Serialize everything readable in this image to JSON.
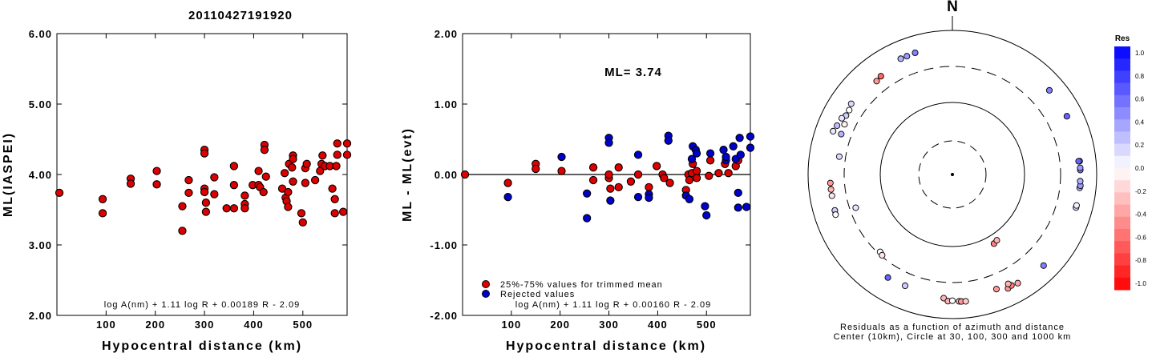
{
  "title": "20110427191920",
  "colors": {
    "red": "#dd0000",
    "blue": "#0000cc",
    "line": "#000000"
  },
  "chart_data": [
    {
      "type": "scatter",
      "ylabel": "ML(IASPEI)",
      "xlabel": "Hypocentral distance (km)",
      "xlim": [
        0,
        590
      ],
      "ylim": [
        2.0,
        6.0
      ],
      "xticks": [
        100,
        200,
        300,
        400,
        500
      ],
      "yticks": [
        2.0,
        3.0,
        4.0,
        5.0,
        6.0
      ],
      "ytick_labels": [
        "2.00",
        "3.00",
        "4.00",
        "5.00",
        "6.00"
      ],
      "formula": "log A(nm) + 1.11 log R + 0.00189 R - 2.09",
      "series": [
        {
          "color": "red",
          "points": [
            [
              5,
              3.74
            ],
            [
              93,
              3.65
            ],
            [
              93,
              3.45
            ],
            [
              150,
              3.94
            ],
            [
              150,
              3.87
            ],
            [
              203,
              4.05
            ],
            [
              203,
              3.86
            ],
            [
              255,
              3.55
            ],
            [
              255,
              3.2
            ],
            [
              268,
              3.92
            ],
            [
              268,
              3.74
            ],
            [
              300,
              4.35
            ],
            [
              300,
              4.3
            ],
            [
              300,
              3.8
            ],
            [
              300,
              3.75
            ],
            [
              303,
              3.6
            ],
            [
              303,
              3.47
            ],
            [
              320,
              3.96
            ],
            [
              320,
              3.72
            ],
            [
              345,
              3.52
            ],
            [
              360,
              4.12
            ],
            [
              360,
              3.85
            ],
            [
              360,
              3.52
            ],
            [
              382,
              3.7
            ],
            [
              382,
              3.58
            ],
            [
              382,
              3.52
            ],
            [
              398,
              3.85
            ],
            [
              410,
              4.05
            ],
            [
              410,
              3.85
            ],
            [
              413,
              3.82
            ],
            [
              420,
              3.75
            ],
            [
              422,
              4.42
            ],
            [
              422,
              4.35
            ],
            [
              425,
              3.97
            ],
            [
              458,
              3.8
            ],
            [
              463,
              4.02
            ],
            [
              465,
              3.67
            ],
            [
              467,
              3.62
            ],
            [
              470,
              3.54
            ],
            [
              470,
              3.75
            ],
            [
              472,
              4.15
            ],
            [
              478,
              4.1
            ],
            [
              480,
              3.9
            ],
            [
              480,
              4.27
            ],
            [
              480,
              4.22
            ],
            [
              497,
              3.45
            ],
            [
              500,
              3.32
            ],
            [
              505,
              3.88
            ],
            [
              505,
              4.09
            ],
            [
              508,
              4.15
            ],
            [
              525,
              3.92
            ],
            [
              535,
              4.05
            ],
            [
              538,
              4.15
            ],
            [
              540,
              4.27
            ],
            [
              545,
              4.12
            ],
            [
              555,
              4.12
            ],
            [
              560,
              3.8
            ],
            [
              565,
              3.65
            ],
            [
              565,
              3.45
            ],
            [
              568,
              4.12
            ],
            [
              570,
              4.44
            ],
            [
              570,
              4.28
            ],
            [
              582,
              3.47
            ],
            [
              590,
              4.44
            ],
            [
              590,
              4.28
            ]
          ]
        }
      ]
    },
    {
      "type": "scatter",
      "ylabel": "ML - ML(evt)",
      "xlabel": "Hypocentral distance (km)",
      "xlim": [
        0,
        590
      ],
      "ylim": [
        -2.0,
        2.0
      ],
      "xticks": [
        100,
        200,
        300,
        400,
        500
      ],
      "yticks": [
        -2.0,
        -1.0,
        0.0,
        1.0,
        2.0
      ],
      "ytick_labels": [
        "-2.00",
        "-1.00",
        "0.00",
        "1.00",
        "2.00"
      ],
      "annotation": "ML= 3.74",
      "legend": [
        "25%-75% values for trimmed mean",
        "Rejected values"
      ],
      "formula": "log A(nm) + 1.11 log R + 0.00160 R - 2.09",
      "series": [
        {
          "name": "25%-75% values for trimmed mean",
          "color": "red",
          "points": [
            [
              5,
              0.0
            ],
            [
              93,
              -0.12
            ],
            [
              150,
              0.15
            ],
            [
              150,
              0.08
            ],
            [
              203,
              0.05
            ],
            [
              268,
              0.1
            ],
            [
              268,
              -0.08
            ],
            [
              300,
              -0.05
            ],
            [
              300,
              0.0
            ],
            [
              303,
              -0.2
            ],
            [
              320,
              -0.18
            ],
            [
              320,
              0.1
            ],
            [
              345,
              -0.1
            ],
            [
              360,
              0.0
            ],
            [
              382,
              -0.18
            ],
            [
              398,
              0.12
            ],
            [
              410,
              0.0
            ],
            [
              413,
              -0.05
            ],
            [
              425,
              -0.12
            ],
            [
              458,
              -0.22
            ],
            [
              463,
              0.0
            ],
            [
              465,
              -0.08
            ],
            [
              470,
              0.02
            ],
            [
              472,
              0.15
            ],
            [
              480,
              0.05
            ],
            [
              480,
              -0.05
            ],
            [
              505,
              -0.02
            ],
            [
              508,
              0.2
            ],
            [
              525,
              0.02
            ],
            [
              538,
              0.15
            ],
            [
              545,
              0.02
            ],
            [
              560,
              0.12
            ],
            [
              565,
              0.2
            ]
          ]
        },
        {
          "name": "Rejected values",
          "color": "blue",
          "points": [
            [
              93,
              -0.32
            ],
            [
              203,
              0.25
            ],
            [
              255,
              -0.27
            ],
            [
              255,
              -0.62
            ],
            [
              300,
              0.52
            ],
            [
              300,
              0.45
            ],
            [
              303,
              -0.37
            ],
            [
              360,
              0.28
            ],
            [
              360,
              -0.32
            ],
            [
              382,
              -0.28
            ],
            [
              382,
              -0.33
            ],
            [
              422,
              0.55
            ],
            [
              422,
              0.48
            ],
            [
              458,
              -0.3
            ],
            [
              465,
              -0.35
            ],
            [
              470,
              0.22
            ],
            [
              472,
              0.4
            ],
            [
              478,
              0.35
            ],
            [
              480,
              0.3
            ],
            [
              497,
              -0.45
            ],
            [
              500,
              -0.58
            ],
            [
              508,
              0.3
            ],
            [
              535,
              0.35
            ],
            [
              540,
              0.2
            ],
            [
              540,
              0.25
            ],
            [
              555,
              0.4
            ],
            [
              560,
              0.22
            ],
            [
              565,
              -0.26
            ],
            [
              565,
              -0.47
            ],
            [
              568,
              0.52
            ],
            [
              570,
              0.28
            ],
            [
              582,
              -0.46
            ],
            [
              590,
              0.54
            ],
            [
              590,
              0.38
            ]
          ]
        }
      ]
    },
    {
      "type": "scatter",
      "subtype": "polar",
      "north_label": "N",
      "colorbar_title": "Res",
      "colorbar_ticks": [
        "1.0",
        "0.8",
        "0.6",
        "0.4",
        "0.2",
        "0.0",
        "-0.2",
        "-0.4",
        "-0.6",
        "-0.8",
        "-1.0"
      ],
      "caption": [
        "Residuals as a function of azimuth and distance",
        "Center (10km), Circle at 30, 100, 300 and 1000 km"
      ],
      "rings_km": [
        30,
        100,
        300,
        1000
      ],
      "stations": [
        {
          "az": 339,
          "dist": 560,
          "res": 0.4
        },
        {
          "az": 343,
          "dist": 570,
          "res": 0.5
        },
        {
          "az": 336,
          "dist": 560,
          "res": 0.3
        },
        {
          "az": 324,
          "dist": 470,
          "res": -0.6
        },
        {
          "az": 321,
          "dist": 450,
          "res": -0.4
        },
        {
          "az": 299,
          "dist": 470,
          "res": 0.2
        },
        {
          "az": 297,
          "dist": 510,
          "res": 0.1
        },
        {
          "az": 302,
          "dist": 470,
          "res": 0.0
        },
        {
          "az": 305,
          "dist": 500,
          "res": 0.15
        },
        {
          "az": 293,
          "dist": 530,
          "res": 0.25
        },
        {
          "az": 290,
          "dist": 560,
          "res": 0.1
        },
        {
          "az": 295,
          "dist": 430,
          "res": -0.05
        },
        {
          "az": 290,
          "dist": 420,
          "res": 0.3
        },
        {
          "az": 279,
          "dist": 370,
          "res": 0.15
        },
        {
          "az": 266,
          "dist": 480,
          "res": -0.4
        },
        {
          "az": 263,
          "dist": 480,
          "res": -0.3
        },
        {
          "az": 260,
          "dist": 480,
          "res": -0.1
        },
        {
          "az": 253,
          "dist": 490,
          "res": 0.2
        },
        {
          "az": 251,
          "dist": 500,
          "res": 0.0
        },
        {
          "az": 251,
          "dist": 250,
          "res": 0.1
        },
        {
          "az": 223,
          "dist": 280,
          "res": 0.0
        },
        {
          "az": 221,
          "dist": 290,
          "res": -0.1
        },
        {
          "az": 212,
          "dist": 470,
          "res": 0.6
        },
        {
          "az": 203,
          "dist": 460,
          "res": 0.2
        },
        {
          "az": 149,
          "dist": 130,
          "res": -0.5
        },
        {
          "az": 146,
          "dist": 125,
          "res": -0.3
        },
        {
          "az": 184,
          "dist": 510,
          "res": -0.3
        },
        {
          "az": 182,
          "dist": 560,
          "res": -0.3
        },
        {
          "az": 180,
          "dist": 550,
          "res": 0.0
        },
        {
          "az": 177,
          "dist": 565,
          "res": -0.3
        },
        {
          "az": 176,
          "dist": 570,
          "res": -0.4
        },
        {
          "az": 174,
          "dist": 575,
          "res": -0.2
        },
        {
          "az": 159,
          "dist": 490,
          "res": -0.4
        },
        {
          "az": 154,
          "dist": 560,
          "res": -0.4
        },
        {
          "az": 152,
          "dist": 540,
          "res": -0.5
        },
        {
          "az": 153,
          "dist": 490,
          "res": -0.3
        },
        {
          "az": 149,
          "dist": 560,
          "res": -0.35
        },
        {
          "az": 135,
          "dist": 600,
          "res": 0.5
        },
        {
          "az": 105,
          "dist": 580,
          "res": 0.15
        },
        {
          "az": 104,
          "dist": 580,
          "res": 0.05
        },
        {
          "az": 96,
          "dist": 580,
          "res": 0.3
        },
        {
          "az": 95,
          "dist": 590,
          "res": 0.4
        },
        {
          "az": 93,
          "dist": 580,
          "res": 0.3
        },
        {
          "az": 88,
          "dist": 580,
          "res": 0.5
        },
        {
          "az": 87,
          "dist": 580,
          "res": 0.4
        },
        {
          "az": 84,
          "dist": 580,
          "res": 0.3
        },
        {
          "az": 84,
          "dist": 560,
          "res": 0.6
        },
        {
          "az": 63,
          "dist": 590,
          "res": 0.6
        },
        {
          "az": 49,
          "dist": 590,
          "res": 0.5
        }
      ]
    }
  ]
}
